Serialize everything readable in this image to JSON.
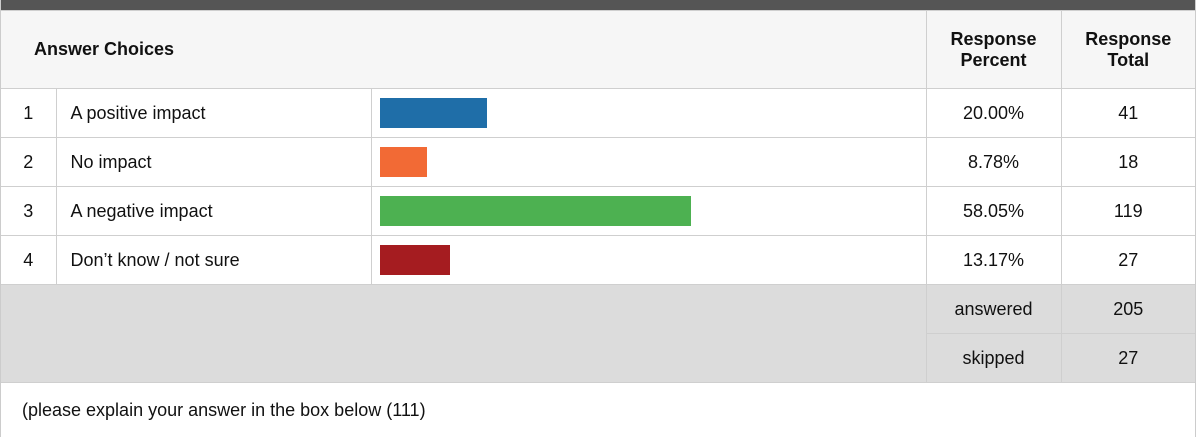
{
  "table": {
    "headers": [
      "Answer Choices",
      "Response Percent",
      "Response Total"
    ],
    "rows": [
      {
        "number": 1,
        "choice": "A positive impact",
        "color": "#1f6ea8",
        "percent": 20.0,
        "percent_label": "20.00%",
        "total": 41
      },
      {
        "number": 2,
        "choice": "No impact",
        "color": "#f26a35",
        "percent": 8.78,
        "percent_label": "8.78%",
        "total": 18
      },
      {
        "number": 3,
        "choice": "A negative impact",
        "color": "#4db151",
        "percent": 58.05,
        "percent_label": "58.05%",
        "total": 119
      },
      {
        "number": 4,
        "choice": "Don’t know / not sure",
        "color": "#a51c20",
        "percent": 13.17,
        "percent_label": "13.17%",
        "total": 27
      }
    ],
    "summary": [
      {
        "label": "answered",
        "value": 205
      },
      {
        "label": "skipped",
        "value": 27
      }
    ],
    "footer": "(please explain your answer in the box below (111)"
  }
}
